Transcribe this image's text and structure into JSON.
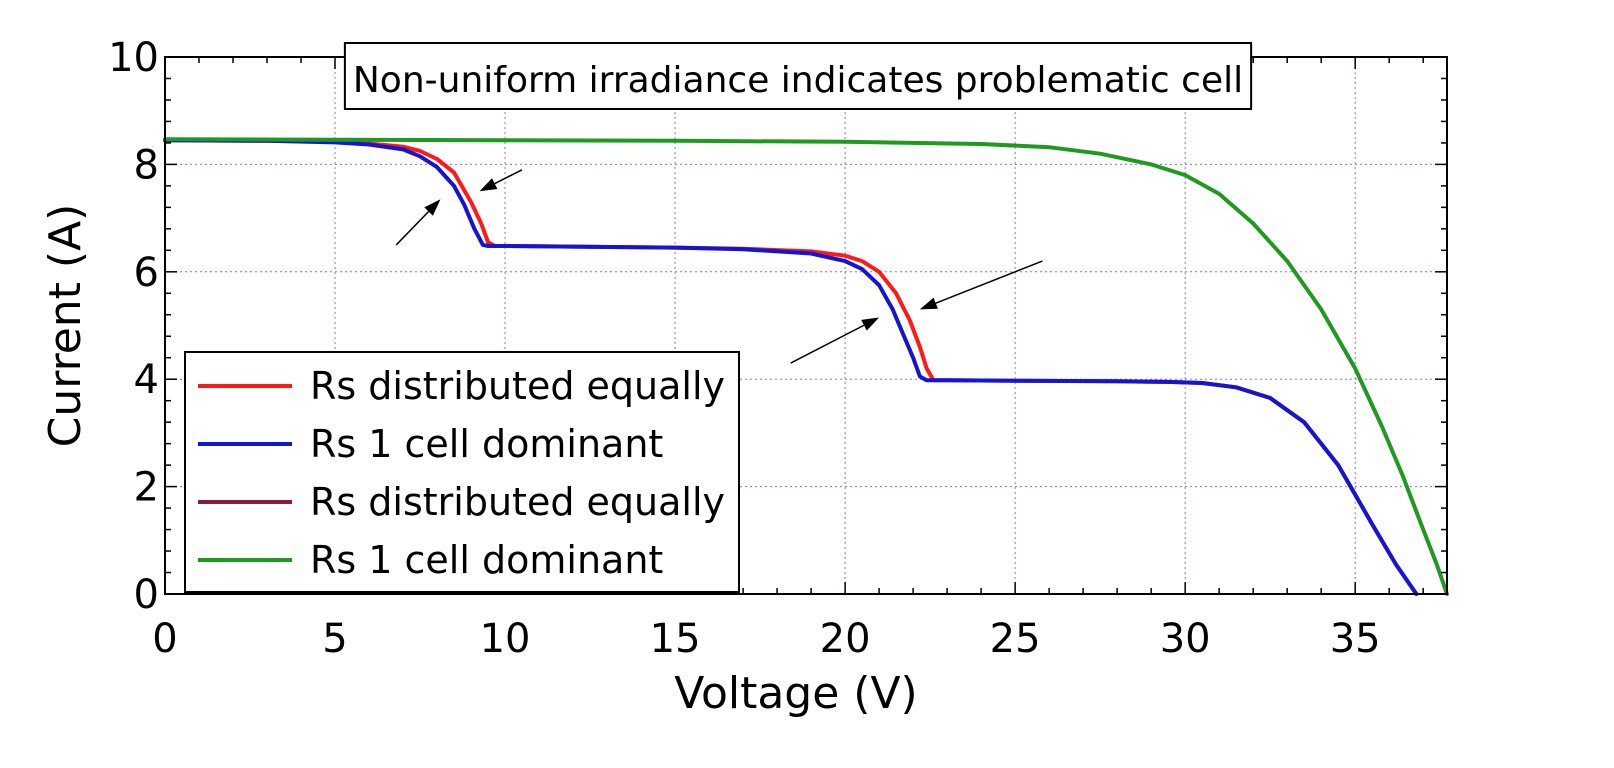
{
  "chart_data": {
    "type": "line",
    "title": "Non-uniform irradiance indicates problematic cell",
    "xlabel": "Voltage (V)",
    "ylabel": "Current (A)",
    "xlim": [
      0,
      37.7
    ],
    "ylim": [
      0,
      10
    ],
    "xticks": [
      0,
      5,
      10,
      15,
      20,
      25,
      30,
      35
    ],
    "yticks": [
      0,
      2,
      4,
      6,
      8,
      10
    ],
    "grid": true,
    "legend_position": "lower-left",
    "series": [
      {
        "name": "Rs distributed equally",
        "color": "#ff1a1a",
        "x": [
          0,
          3,
          5,
          6,
          7,
          7.5,
          8,
          8.5,
          9.0,
          9.3,
          9.5,
          9.7,
          10,
          12,
          15,
          17,
          19,
          20,
          20.5,
          21,
          21.5,
          21.9,
          22.2,
          22.4,
          22.6,
          23,
          25,
          28,
          29.5,
          30.5,
          31.5,
          32.5,
          33.5,
          34.5,
          35.5,
          36.2,
          36.8
        ],
        "y": [
          8.45,
          8.44,
          8.42,
          8.39,
          8.33,
          8.25,
          8.1,
          7.85,
          7.3,
          6.9,
          6.55,
          6.48,
          6.48,
          6.47,
          6.45,
          6.43,
          6.38,
          6.3,
          6.2,
          6.0,
          5.6,
          5.1,
          4.6,
          4.2,
          3.98,
          3.98,
          3.97,
          3.96,
          3.95,
          3.93,
          3.85,
          3.65,
          3.2,
          2.4,
          1.3,
          0.55,
          0
        ]
      },
      {
        "name": "Rs 1 cell dominant",
        "color": "#1414d2",
        "x": [
          0,
          3,
          5,
          6,
          7,
          7.5,
          8,
          8.5,
          8.8,
          9.1,
          9.35,
          9.5,
          10,
          12,
          15,
          17,
          19,
          20,
          20.5,
          21,
          21.4,
          21.7,
          22.0,
          22.2,
          22.4,
          23,
          25,
          28,
          29.5,
          30.5,
          31.5,
          32.5,
          33.5,
          34.5,
          35.5,
          36.2,
          36.8
        ],
        "y": [
          8.45,
          8.44,
          8.41,
          8.37,
          8.28,
          8.15,
          7.95,
          7.6,
          7.25,
          6.8,
          6.5,
          6.48,
          6.48,
          6.47,
          6.45,
          6.42,
          6.34,
          6.2,
          6.05,
          5.75,
          5.3,
          4.85,
          4.4,
          4.05,
          3.98,
          3.98,
          3.97,
          3.96,
          3.95,
          3.93,
          3.85,
          3.65,
          3.2,
          2.4,
          1.3,
          0.55,
          0
        ]
      },
      {
        "name": "Rs distributed equally",
        "color": "#8b1a3c",
        "x": [],
        "y": []
      },
      {
        "name": "Rs 1 cell dominant",
        "color": "#1e9b1e",
        "x": [
          0,
          5,
          10,
          15,
          20,
          24,
          26,
          27.5,
          29,
          30,
          31,
          32,
          33,
          34,
          35,
          35.8,
          36.4,
          37,
          37.4,
          37.7
        ],
        "y": [
          8.47,
          8.46,
          8.45,
          8.44,
          8.42,
          8.38,
          8.32,
          8.2,
          8.0,
          7.8,
          7.45,
          6.9,
          6.2,
          5.3,
          4.2,
          3.1,
          2.2,
          1.2,
          0.55,
          0
        ]
      }
    ],
    "annotations": [
      {
        "type": "arrow",
        "from": [
          10.5,
          7.9
        ],
        "to": [
          9.25,
          7.5
        ]
      },
      {
        "type": "arrow",
        "from": [
          6.8,
          6.5
        ],
        "to": [
          8.1,
          7.35
        ]
      },
      {
        "type": "arrow",
        "from": [
          25.8,
          6.2
        ],
        "to": [
          22.2,
          5.3
        ]
      },
      {
        "type": "arrow",
        "from": [
          18.4,
          4.3
        ],
        "to": [
          21.0,
          5.15
        ]
      }
    ]
  }
}
